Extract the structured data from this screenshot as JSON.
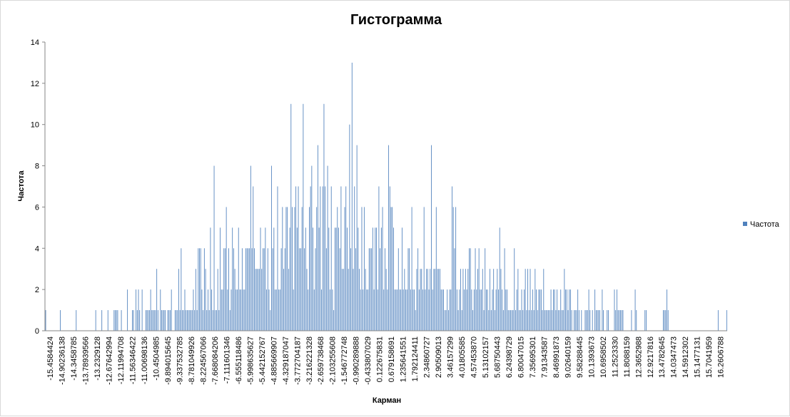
{
  "chart_data": {
    "type": "bar",
    "title": "Гистограмма",
    "xlabel": "Карман",
    "ylabel": "Частота",
    "ylim": [
      0,
      14
    ],
    "y_ticks": [
      0,
      2,
      4,
      6,
      8,
      10,
      12,
      14
    ],
    "grid": false,
    "legend_position": "right",
    "bar_color": "#4f81bd",
    "series": [
      {
        "name": "Частота",
        "values": [
          1,
          0,
          0,
          0,
          0,
          0,
          0,
          0,
          0,
          0,
          0,
          0,
          1,
          0,
          0,
          0,
          0,
          0,
          0,
          0,
          0,
          0,
          0,
          0,
          0,
          1,
          0,
          0,
          0,
          0,
          0,
          0,
          0,
          0,
          0,
          0,
          0,
          0,
          0,
          0,
          0,
          1,
          0,
          0,
          0,
          0,
          1,
          0,
          0,
          0,
          0,
          1,
          0,
          0,
          0,
          0,
          1,
          1,
          1,
          1,
          0,
          0,
          1,
          0,
          0,
          0,
          0,
          2,
          0,
          0,
          0,
          1,
          1,
          0,
          2,
          1,
          2,
          1,
          0,
          2,
          0,
          0,
          1,
          1,
          1,
          1,
          2,
          1,
          1,
          1,
          1,
          3,
          1,
          0,
          2,
          1,
          1,
          1,
          1,
          0,
          1,
          1,
          1,
          2,
          0,
          0,
          1,
          1,
          1,
          3,
          1,
          4,
          1,
          1,
          2,
          1,
          1,
          1,
          1,
          1,
          1,
          2,
          1,
          3,
          1,
          4,
          4,
          4,
          2,
          1,
          4,
          3,
          1,
          2,
          1,
          5,
          2,
          1,
          8,
          1,
          1,
          3,
          1,
          5,
          2,
          2,
          4,
          4,
          6,
          2,
          4,
          1,
          2,
          5,
          4,
          3,
          2,
          2,
          5,
          2,
          2,
          4,
          2,
          2,
          4,
          4,
          4,
          4,
          8,
          4,
          7,
          4,
          3,
          3,
          3,
          3,
          5,
          3,
          4,
          4,
          5,
          2,
          4,
          2,
          1,
          8,
          4,
          5,
          2,
          2,
          7,
          2,
          2,
          4,
          6,
          3,
          4,
          6,
          6,
          3,
          5,
          11,
          6,
          2,
          6,
          7,
          5,
          7,
          4,
          4,
          6,
          11,
          4,
          5,
          3,
          2,
          6,
          7,
          8,
          5,
          2,
          4,
          6,
          9,
          5,
          7,
          2,
          7,
          11,
          7,
          4,
          8,
          5,
          2,
          7,
          2,
          1,
          5,
          5,
          6,
          5,
          4,
          7,
          3,
          3,
          6,
          7,
          5,
          3,
          10,
          4,
          13,
          3,
          7,
          4,
          9,
          5,
          3,
          2,
          6,
          2,
          6,
          3,
          2,
          2,
          4,
          4,
          4,
          5,
          2,
          5,
          5,
          2,
          7,
          4,
          5,
          6,
          2,
          4,
          3,
          2,
          9,
          7,
          6,
          6,
          5,
          2,
          2,
          2,
          4,
          2,
          2,
          5,
          2,
          3,
          2,
          2,
          4,
          4,
          2,
          6,
          2,
          2,
          1,
          3,
          4,
          2,
          3,
          3,
          2,
          6,
          2,
          3,
          3,
          2,
          3,
          9,
          2,
          3,
          3,
          6,
          3,
          3,
          3,
          2,
          2,
          2,
          1,
          1,
          2,
          1,
          2,
          2,
          7,
          6,
          4,
          6,
          2,
          1,
          2,
          3,
          1,
          3,
          2,
          3,
          2,
          3,
          4,
          4,
          2,
          1,
          2,
          4,
          2,
          3,
          4,
          2,
          2,
          3,
          1,
          4,
          2,
          2,
          1,
          3,
          1,
          2,
          3,
          1,
          2,
          3,
          2,
          5,
          3,
          2,
          1,
          4,
          2,
          2,
          1,
          1,
          1,
          1,
          1,
          4,
          1,
          2,
          3,
          1,
          1,
          2,
          1,
          2,
          3,
          1,
          3,
          1,
          3,
          1,
          2,
          1,
          3,
          2,
          1,
          2,
          2,
          2,
          1,
          3,
          1,
          1,
          1,
          1,
          1,
          2,
          1,
          2,
          2,
          1,
          2,
          1,
          1,
          2,
          1,
          1,
          3,
          2,
          2,
          1,
          2,
          2,
          1,
          0,
          1,
          1,
          1,
          2,
          1,
          0,
          1,
          0,
          0,
          1,
          1,
          1,
          2,
          1,
          0,
          1,
          0,
          2,
          1,
          1,
          1,
          1,
          0,
          2,
          1,
          0,
          0,
          1,
          1,
          0,
          0,
          0,
          0,
          2,
          1,
          2,
          1,
          1,
          1,
          1,
          1,
          0,
          0,
          0,
          0,
          0,
          0,
          1,
          0,
          0,
          2,
          1,
          0,
          0,
          0,
          0,
          0,
          0,
          1,
          1,
          0,
          0,
          0,
          0,
          0,
          0,
          0,
          0,
          0,
          0,
          0,
          0,
          0,
          1,
          1,
          1,
          2,
          1,
          0,
          0,
          0,
          0,
          0,
          0,
          0,
          0,
          0,
          0,
          0,
          0,
          0,
          0,
          0,
          0,
          0,
          0,
          0,
          0,
          0,
          0,
          0,
          0,
          0,
          0,
          0,
          0,
          0,
          0,
          0,
          0,
          0,
          0,
          0,
          0,
          0,
          0,
          0,
          0,
          1,
          0,
          0,
          0,
          0,
          0,
          0,
          1
        ]
      }
    ],
    "x_tick_labels": [
      "-15.4584424",
      "-14.90236138",
      "-14.3458785",
      "-13.78939566",
      "-13.2329128",
      "-12.67642994",
      "-12.11994708",
      "-11.56346422",
      "-11.00698136",
      "-10.4504985",
      "-9.894015645",
      "-9.337532785",
      "-8.781049926",
      "-8.224567066",
      "-7.668084206",
      "-7.111601346",
      "-6.555118486",
      "-5.998635627",
      "-5.442152767",
      "-4.885669907",
      "-4.329187047",
      "-3.772704187",
      "-3.216221328",
      "-2.659738468",
      "-2.103255608",
      "-1.546772748",
      "-0.990289888",
      "-0.433807029",
      "0.122675831",
      "0.679158691",
      "1.235641551",
      "1.792124411",
      "2.34860727",
      "2.90509013",
      "3.46157299",
      "4.01805585",
      "4.57453870",
      "5.13102157",
      "5.68750443",
      "6.24398729",
      "6.80047015",
      "7.35695301",
      "7.91343587",
      "8.46991873",
      "9.02640159",
      "9.58288445",
      "10.1393673",
      "10.6958502",
      "11.2523330",
      "11.8088159",
      "12.3652988",
      "12.9217816",
      "13.4782645",
      "14.0347473",
      "14.5912302",
      "15.1477131",
      "15.7041959",
      "16.2606788"
    ],
    "legend": [
      {
        "label": "Частота",
        "color": "#4f81bd"
      }
    ]
  }
}
